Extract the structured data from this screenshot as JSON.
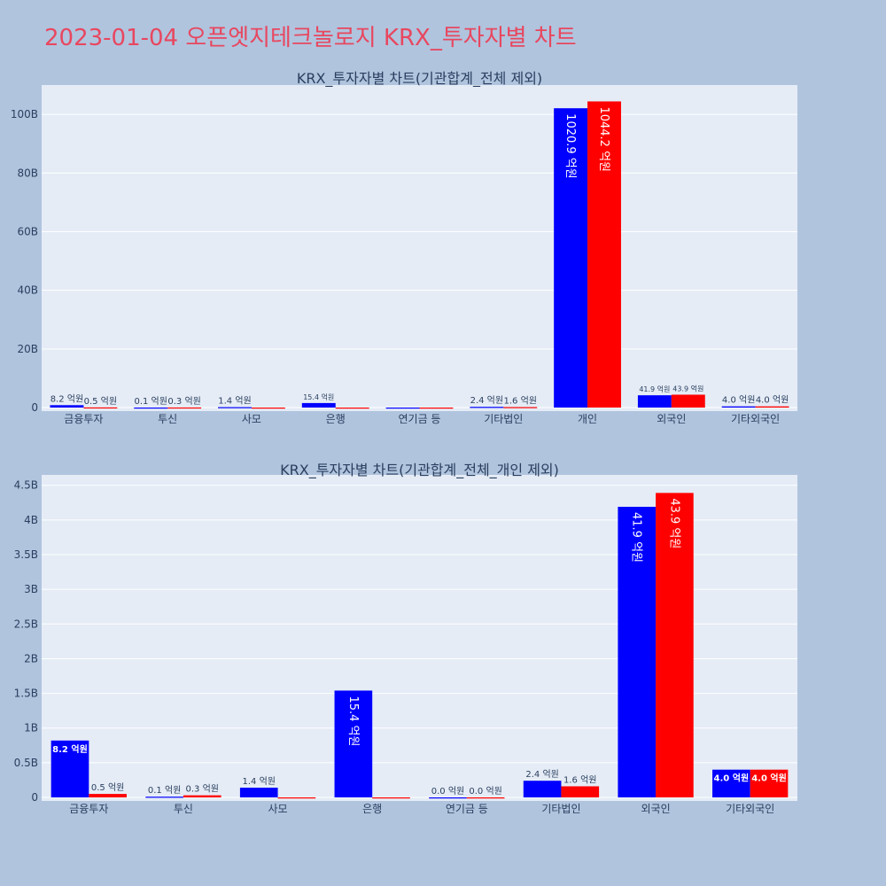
{
  "page": {
    "title": "2023-01-04 오픈엣지테크놀로지 KRX_투자자별 차트"
  },
  "colors": {
    "series_a": "#0000ff",
    "series_b": "#ff0000",
    "background": "#b0c4de",
    "plot_background": "#e5ecf6",
    "title": "#e8475f"
  },
  "chart_data": [
    {
      "type": "bar",
      "title": "KRX_투자자별 차트(기관합계_전체 제외)",
      "categories": [
        "금융투자",
        "투신",
        "사모",
        "은행",
        "연기금 등",
        "기타법인",
        "개인",
        "외국인",
        "기타외국인"
      ],
      "series": [
        {
          "color": "#0000ff",
          "values": [
            0.82,
            0.01,
            0.14,
            1.54,
            0.0,
            0.24,
            102.09,
            4.19,
            0.4
          ],
          "labels": [
            "8.2 억원",
            "0.1 억원",
            "1.4 억원",
            "15.4 억원",
            "",
            "2.4 억원",
            "1020.9 억원",
            "41.9 억원",
            "4.0 억원"
          ]
        },
        {
          "color": "#ff0000",
          "values": [
            0.05,
            0.03,
            0.0,
            0.0,
            0.0,
            0.16,
            104.42,
            4.39,
            0.4
          ],
          "labels": [
            "0.5 억원",
            "0.3 억원",
            "",
            "",
            "",
            "1.6 억원",
            "1044.2 억원",
            "43.9 억원",
            "4.0 억원"
          ]
        }
      ],
      "yticks": [
        "0",
        "20B",
        "40B",
        "60B",
        "80B",
        "100B"
      ],
      "ytick_values": [
        0,
        20,
        40,
        60,
        80,
        100
      ],
      "ylim": [
        0,
        110
      ],
      "grid": true,
      "legend": false
    },
    {
      "type": "bar",
      "title": "KRX_투자자별 차트(기관합계_전체_개인 제외)",
      "categories": [
        "금융투자",
        "투신",
        "사모",
        "은행",
        "연기금 등",
        "기타법인",
        "외국인",
        "기타외국인"
      ],
      "series": [
        {
          "color": "#0000ff",
          "values": [
            0.82,
            0.01,
            0.14,
            1.54,
            0.0,
            0.24,
            4.19,
            0.4
          ],
          "labels": [
            "8.2 억원",
            "0.1 억원",
            "1.4 억원",
            "15.4 억원",
            "0.0 억원",
            "2.4 억원",
            "41.9 억원",
            "4.0 억원"
          ]
        },
        {
          "color": "#ff0000",
          "values": [
            0.05,
            0.03,
            0.0,
            0.0,
            0.0,
            0.16,
            4.39,
            0.4
          ],
          "labels": [
            "0.5 억원",
            "0.3 억원",
            "",
            "",
            "0.0 억원",
            "1.6 억원",
            "43.9 억원",
            "4.0 억원"
          ]
        }
      ],
      "yticks": [
        "0",
        "0.5B",
        "1B",
        "1.5B",
        "2B",
        "2.5B",
        "3B",
        "3.5B",
        "4B",
        "4.5B"
      ],
      "ytick_values": [
        0,
        0.5,
        1,
        1.5,
        2,
        2.5,
        3,
        3.5,
        4,
        4.5
      ],
      "ylim": [
        0,
        4.65
      ],
      "grid": true,
      "legend": false
    }
  ]
}
